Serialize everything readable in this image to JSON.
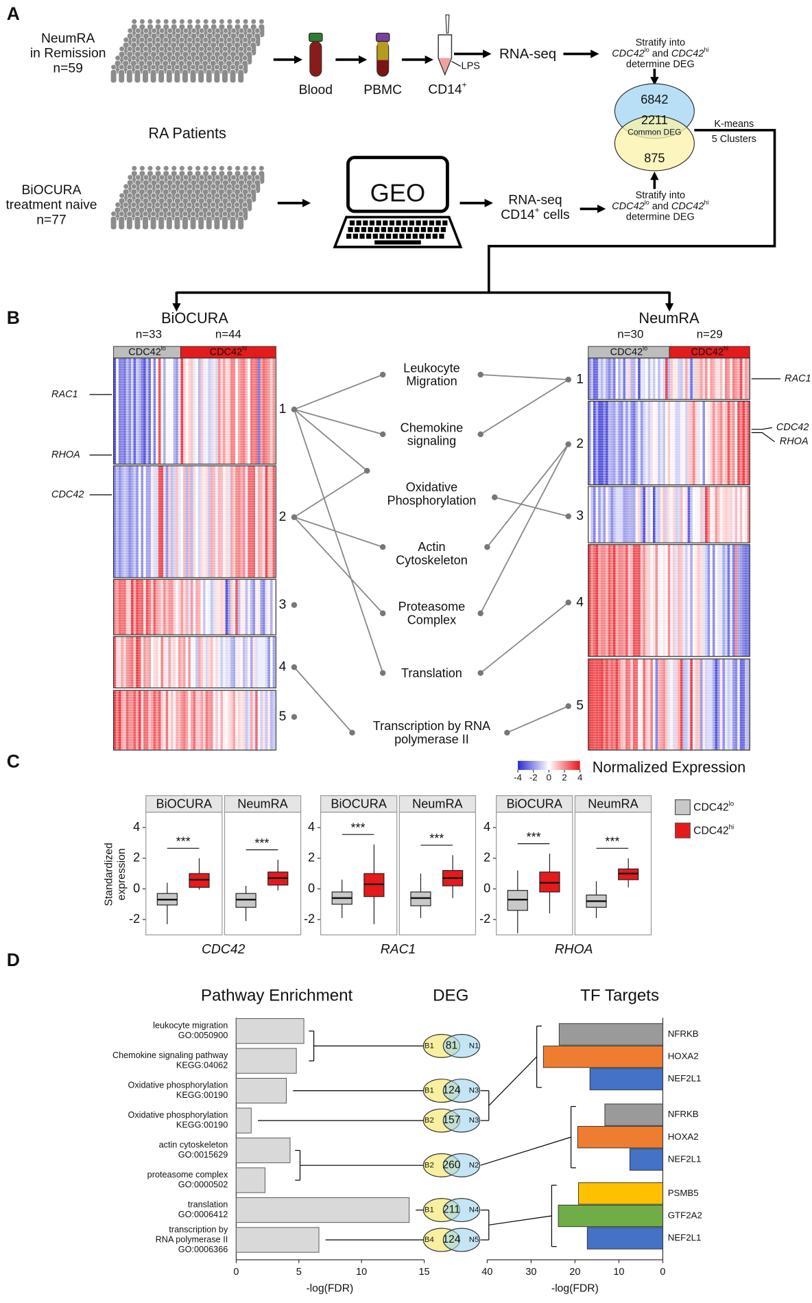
{
  "panel_a": {
    "letter": "A",
    "cohort_top": [
      "NeumRA",
      "in Remission",
      "n=59"
    ],
    "cohort_bottom": [
      "BiOCURA",
      "treatment naive",
      "n=77"
    ],
    "group_label": "RA Patients",
    "blood": "Blood",
    "pbmc": "PBMC",
    "cd14": {
      "text": "CD14",
      "sup": "+"
    },
    "lps": "LPS",
    "rnaseq_top": "RNA-seq",
    "geo": "GEO",
    "rnaseq_bottom": {
      "line1": "RNA-seq",
      "text": "CD14",
      "sup": "+",
      "rest": " cells"
    },
    "stratify": {
      "line1": "Stratify into",
      "gene_lo": "CDC42",
      "lo": "lo",
      "and": " and ",
      "gene_hi": "CDC42",
      "hi": "hi",
      "line3": "determine DEG"
    },
    "venn": {
      "top": 6842,
      "common": 2211,
      "common_label": "Common DEG",
      "bottom": 875
    },
    "kmeans": [
      "K-means",
      "5 Clusters"
    ]
  },
  "panel_b": {
    "letter": "B",
    "group_lo": {
      "text": "CDC42",
      "sup": "lo"
    },
    "group_hi": {
      "text": "CDC42",
      "sup": "hi"
    },
    "left": {
      "title": "BiOCURA",
      "n_lo": "n=33",
      "n_hi": "n=44",
      "clusters": [
        1,
        2,
        3,
        4,
        5
      ],
      "genes": [
        "RAC1",
        "RHOA",
        "CDC42"
      ],
      "links": [
        [
          0,
          0
        ],
        [
          0,
          1
        ],
        [
          0,
          2
        ],
        [
          0,
          5
        ],
        [
          1,
          2
        ],
        [
          1,
          3
        ],
        [
          1,
          4
        ],
        [
          3,
          6
        ]
      ]
    },
    "right": {
      "title": "NeumRA",
      "n_lo": "n=30",
      "n_hi": "n=29",
      "clusters": [
        1,
        2,
        3,
        4,
        5
      ],
      "genes": [
        "RAC1",
        "CDC42",
        "RHOA"
      ],
      "links": [
        [
          0,
          0
        ],
        [
          0,
          1
        ],
        [
          1,
          3
        ],
        [
          1,
          4
        ],
        [
          2,
          2
        ],
        [
          3,
          5
        ],
        [
          4,
          6
        ]
      ]
    },
    "pathways": [
      [
        "Leukocyte",
        "Migration"
      ],
      [
        "Chemokine",
        "signaling"
      ],
      [
        "Oxidative",
        "Phosphorylation"
      ],
      [
        "Actin",
        "Cytoskeleton"
      ],
      [
        "Proteasome",
        "Complex"
      ],
      [
        "Translation"
      ],
      [
        "Transcription by RNA",
        "polymerase II"
      ]
    ],
    "colorbar": {
      "label": "Normalized Expression",
      "ticks": [
        -4,
        -2,
        0,
        2,
        4
      ],
      "lim": [
        -4,
        4
      ],
      "colors": [
        "#2b2bd0",
        "#ffffff",
        "#e8141c"
      ]
    }
  },
  "panel_c": {
    "letter": "C",
    "ylabel": [
      "Standardized",
      "expression"
    ],
    "ylim": [
      -3,
      5
    ],
    "yticks": [
      -2,
      0,
      2,
      4
    ],
    "groups": [
      {
        "text": "CDC42",
        "sup": "lo",
        "color": "#c8c8c8"
      },
      {
        "text": "CDC42",
        "sup": "hi",
        "color": "#e41a1c"
      }
    ],
    "genes": [
      {
        "name": "CDC42",
        "facets": [
          {
            "name": "BiOCURA",
            "sig": "***",
            "boxes": [
              {
                "whislo": -2.3,
                "q1": -1.05,
                "med": -0.7,
                "q3": -0.3,
                "whishi": 0.4
              },
              {
                "whislo": -0.05,
                "q1": 0.1,
                "med": 0.6,
                "q3": 1.0,
                "whishi": 2.0
              }
            ]
          },
          {
            "name": "NeumRA",
            "sig": "***",
            "boxes": [
              {
                "whislo": -2.1,
                "q1": -1.2,
                "med": -0.7,
                "q3": -0.3,
                "whishi": 0.2
              },
              {
                "whislo": -0.1,
                "q1": 0.25,
                "med": 0.7,
                "q3": 1.1,
                "whishi": 1.9
              }
            ]
          }
        ]
      },
      {
        "name": "RAC1",
        "facets": [
          {
            "name": "BiOCURA",
            "sig": "***",
            "boxes": [
              {
                "whislo": -1.9,
                "q1": -1.0,
                "med": -0.6,
                "q3": -0.2,
                "whishi": 0.6
              },
              {
                "whislo": -2.3,
                "q1": -0.5,
                "med": 0.3,
                "q3": 1.0,
                "whishi": 2.9
              }
            ]
          },
          {
            "name": "NeumRA",
            "sig": "***",
            "boxes": [
              {
                "whislo": -1.9,
                "q1": -1.1,
                "med": -0.6,
                "q3": -0.2,
                "whishi": 1.0
              },
              {
                "whislo": -0.6,
                "q1": 0.2,
                "med": 0.7,
                "q3": 1.2,
                "whishi": 2.2
              }
            ]
          }
        ]
      },
      {
        "name": "RHOA",
        "facets": [
          {
            "name": "BiOCURA",
            "sig": "***",
            "boxes": [
              {
                "whislo": -2.9,
                "q1": -1.4,
                "med": -0.7,
                "q3": -0.1,
                "whishi": 1.2
              },
              {
                "whislo": -1.6,
                "q1": -0.2,
                "med": 0.4,
                "q3": 1.1,
                "whishi": 2.3
              }
            ]
          },
          {
            "name": "NeumRA",
            "sig": "***",
            "boxes": [
              {
                "whislo": -1.9,
                "q1": -1.2,
                "med": -0.8,
                "q3": -0.4,
                "whishi": 0.5
              },
              {
                "whislo": 0.1,
                "q1": 0.6,
                "med": 1.0,
                "q3": 1.3,
                "whishi": 2.0
              }
            ]
          }
        ]
      }
    ]
  },
  "panel_d": {
    "letter": "D",
    "pathway": {
      "title": "Pathway Enrichment",
      "xlabel": "-log(FDR)",
      "xlim": [
        0,
        15
      ],
      "xticks": [
        0,
        5,
        10,
        15
      ],
      "color": "#d9d9d9",
      "bars": [
        {
          "label": [
            "leukocyte migration",
            "GO:0050900"
          ],
          "value": 5.4
        },
        {
          "label": [
            "Chemokine signaling pathway",
            "KEGG:04062"
          ],
          "value": 4.8
        },
        {
          "label": [
            "Oxidative phosphorylation",
            "KEGG:00190"
          ],
          "value": 4.0
        },
        {
          "label": [
            "Oxidative phosphorylation",
            "KEGG:00190"
          ],
          "value": 1.2
        },
        {
          "label": [
            "actin cytoskeleton",
            "GO:0015629"
          ],
          "value": 4.3
        },
        {
          "label": [
            "proteasome complex",
            "GO:0000502"
          ],
          "value": 2.3
        },
        {
          "label": [
            "translation",
            "GO:0006412"
          ],
          "value": 13.8
        },
        {
          "label": [
            "transcription by",
            "RNA polymerase II",
            "GO:0006366"
          ],
          "value": 6.6
        }
      ]
    },
    "deg": {
      "title": "DEG",
      "items": [
        {
          "left": "B1",
          "count": 81,
          "right": "N1"
        },
        {
          "left": "B1",
          "count": 124,
          "right": "N3"
        },
        {
          "left": "B2",
          "count": 157,
          "right": "N3"
        },
        {
          "left": "B2",
          "count": 260,
          "right": "N2"
        },
        {
          "left": "B1",
          "count": 211,
          "right": "N4"
        },
        {
          "left": "B4",
          "count": 124,
          "right": "N5"
        }
      ]
    },
    "tf": {
      "title": "TF Targets",
      "xlabel": "-log(FDR)",
      "xlim": [
        40,
        0
      ],
      "xticks": [
        40,
        30,
        20,
        10,
        0
      ],
      "groups": [
        [
          {
            "name": "NFRKB",
            "value": 23.6,
            "color": "#9a9a9a"
          },
          {
            "name": "HOXA2",
            "value": 27.2,
            "color": "#ee7d31"
          },
          {
            "name": "NEF2L1",
            "value": 16.6,
            "color": "#4472c4"
          }
        ],
        [
          {
            "name": "NFRKB",
            "value": 13.2,
            "color": "#9a9a9a"
          },
          {
            "name": "HOXA2",
            "value": 19.4,
            "color": "#ee7d31"
          },
          {
            "name": "NEF2L1",
            "value": 7.5,
            "color": "#4472c4"
          }
        ],
        [
          {
            "name": "PSMB5",
            "value": 19.2,
            "color": "#ffc000"
          },
          {
            "name": "GTF2A2",
            "value": 23.8,
            "color": "#70ad47"
          },
          {
            "name": "NEF2L1",
            "value": 17.2,
            "color": "#4472c4"
          }
        ]
      ]
    },
    "pathway_to_deg": [
      [
        0,
        1
      ],
      [
        2
      ],
      [
        3
      ],
      [
        4,
        5
      ],
      [
        6
      ],
      [
        7
      ]
    ],
    "deg_to_tf": [
      [
        1,
        2
      ],
      [
        3
      ],
      [
        4,
        5
      ]
    ]
  }
}
